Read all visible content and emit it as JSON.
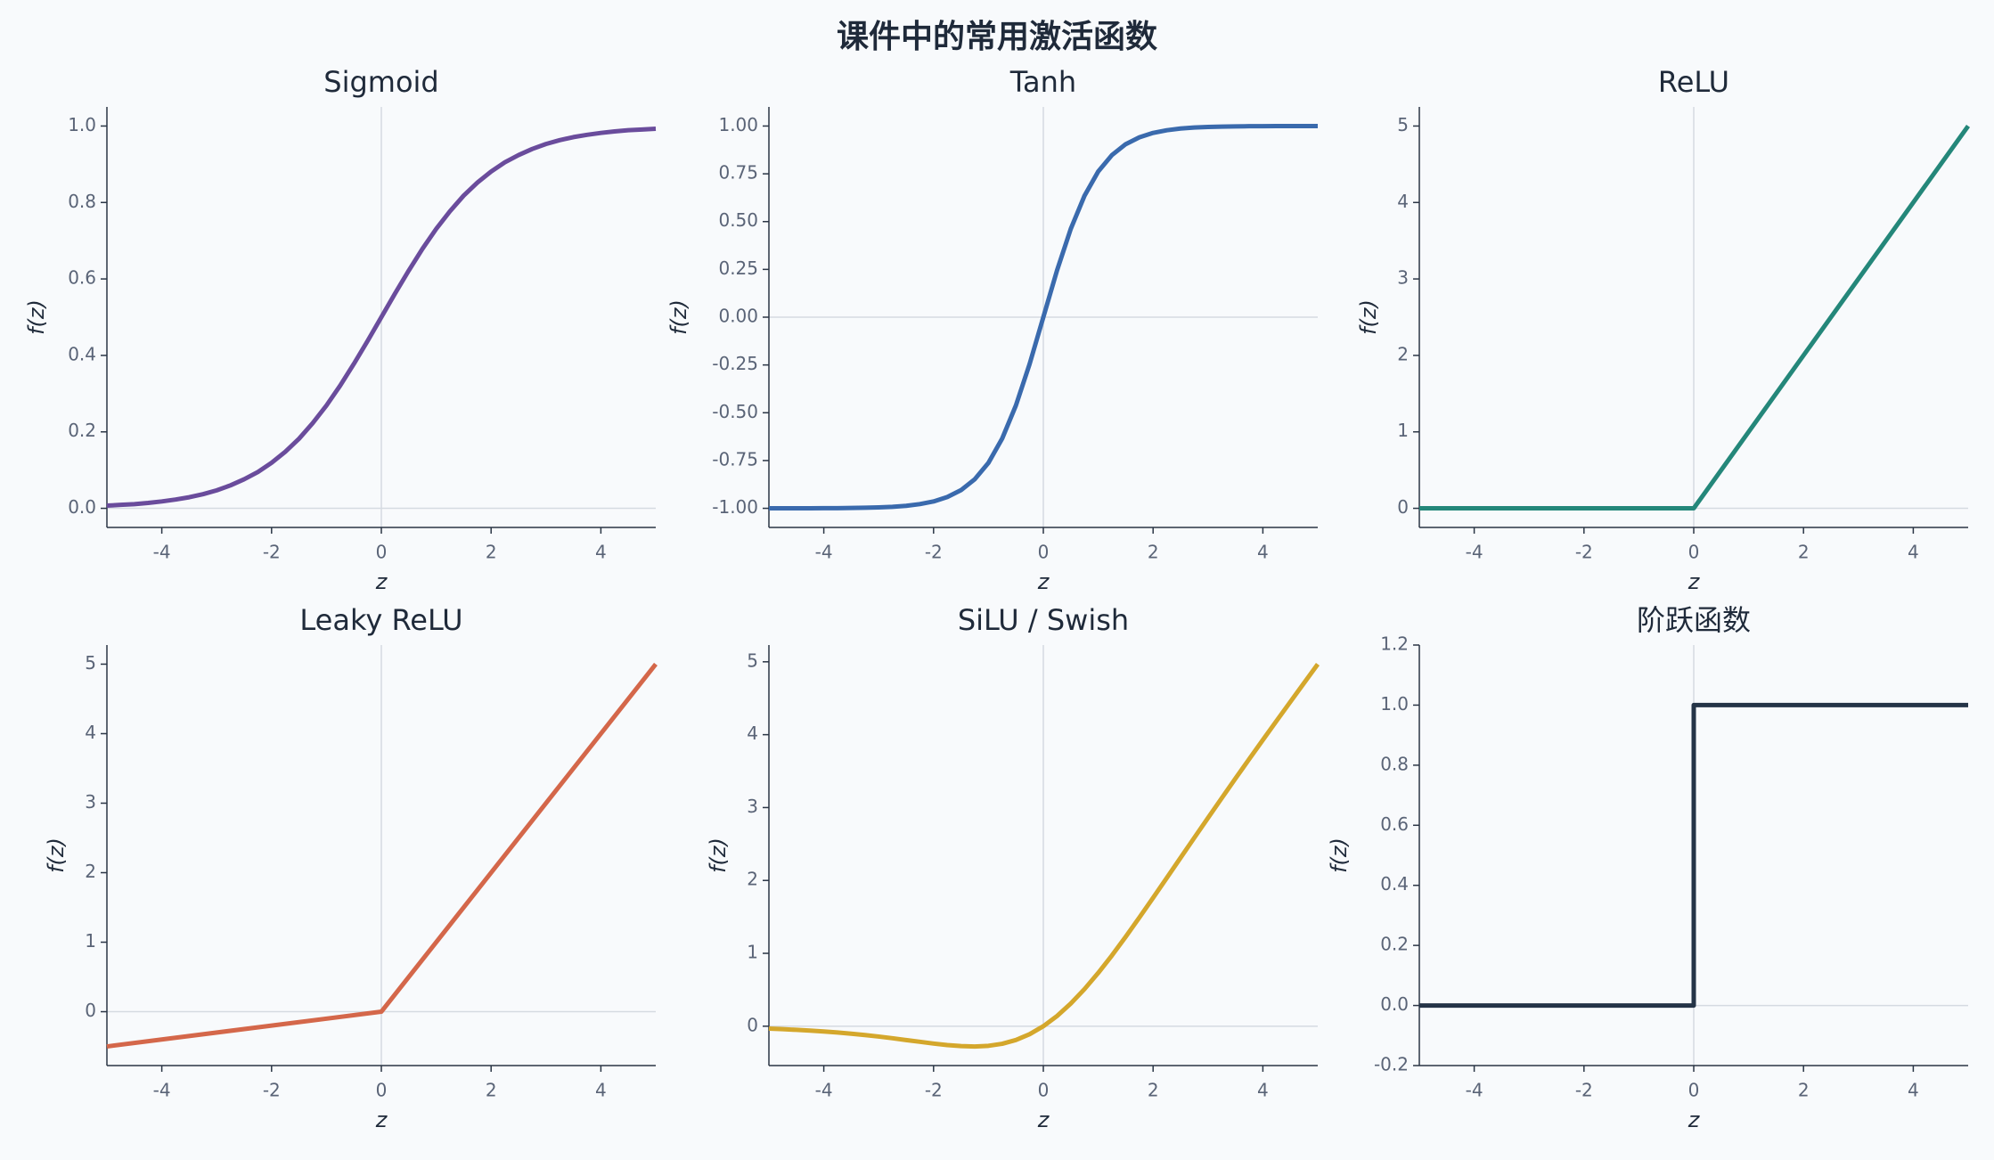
{
  "title": "课件中的常用激活函数",
  "chart_data": [
    {
      "type": "line",
      "title": "Sigmoid",
      "xlabel": "z",
      "ylabel": "f(z)",
      "x": [
        -5,
        -4.75,
        -4.5,
        -4.25,
        -4,
        -3.75,
        -3.5,
        -3.25,
        -3,
        -2.75,
        -2.5,
        -2.25,
        -2,
        -1.75,
        -1.5,
        -1.25,
        -1,
        -0.75,
        -0.5,
        -0.25,
        0,
        0.25,
        0.5,
        0.75,
        1,
        1.25,
        1.5,
        1.75,
        2,
        2.25,
        2.5,
        2.75,
        3,
        3.25,
        3.5,
        3.75,
        4,
        4.25,
        4.5,
        4.75,
        5
      ],
      "series": [
        {
          "color": "#6a4c9c",
          "values": [
            0.007,
            0.009,
            0.011,
            0.014,
            0.018,
            0.023,
            0.029,
            0.037,
            0.047,
            0.06,
            0.076,
            0.095,
            0.119,
            0.148,
            0.182,
            0.223,
            0.269,
            0.321,
            0.378,
            0.438,
            0.5,
            0.562,
            0.622,
            0.679,
            0.731,
            0.777,
            0.818,
            0.852,
            0.881,
            0.905,
            0.924,
            0.94,
            0.953,
            0.963,
            0.971,
            0.977,
            0.982,
            0.986,
            0.989,
            0.991,
            0.993
          ]
        }
      ],
      "xlim": [
        -5,
        5
      ],
      "xticks": [
        -4,
        -2,
        0,
        2,
        4
      ],
      "ylim": [
        -0.05,
        1.05
      ],
      "yticks": [
        {
          "value": 0,
          "label": "0.0"
        },
        0.2,
        0.4,
        0.6,
        0.8,
        {
          "value": 1,
          "label": "1.0"
        }
      ],
      "zero_lines": true
    },
    {
      "type": "line",
      "title": "Tanh",
      "xlabel": "z",
      "ylabel": "f(z)",
      "x": [
        -5,
        -4.75,
        -4.5,
        -4.25,
        -4,
        -3.75,
        -3.5,
        -3.25,
        -3,
        -2.75,
        -2.5,
        -2.25,
        -2,
        -1.75,
        -1.5,
        -1.25,
        -1,
        -0.75,
        -0.5,
        -0.25,
        0,
        0.25,
        0.5,
        0.75,
        1,
        1.25,
        1.5,
        1.75,
        2,
        2.25,
        2.5,
        2.75,
        3,
        3.25,
        3.5,
        3.75,
        4,
        4.25,
        4.5,
        4.75,
        5
      ],
      "series": [
        {
          "color": "#3a6aad",
          "values": [
            -1,
            -1,
            -1,
            -1,
            -0.999,
            -0.999,
            -0.998,
            -0.997,
            -0.995,
            -0.992,
            -0.987,
            -0.978,
            -0.964,
            -0.941,
            -0.905,
            -0.848,
            -0.762,
            -0.635,
            -0.462,
            -0.245,
            0,
            0.245,
            0.462,
            0.635,
            0.762,
            0.848,
            0.905,
            0.941,
            0.964,
            0.978,
            0.987,
            0.992,
            0.995,
            0.997,
            0.998,
            0.999,
            0.999,
            1,
            1,
            1,
            1
          ]
        }
      ],
      "xlim": [
        -5,
        5
      ],
      "xticks": [
        -4,
        -2,
        0,
        2,
        4
      ],
      "ylim": [
        -1.1,
        1.1
      ],
      "yticks": [
        {
          "value": -1,
          "label": "-1.00"
        },
        -0.75,
        {
          "value": -0.5,
          "label": "-0.50"
        },
        -0.25,
        {
          "value": 0,
          "label": "0.00"
        },
        0.25,
        {
          "value": 0.5,
          "label": "0.50"
        },
        0.75,
        {
          "value": 1,
          "label": "1.00"
        }
      ],
      "zero_lines": true
    },
    {
      "type": "line",
      "title": "ReLU",
      "xlabel": "z",
      "ylabel": "f(z)",
      "x": [
        -5,
        0,
        5
      ],
      "series": [
        {
          "color": "#24877a",
          "values": [
            0,
            0,
            5
          ]
        }
      ],
      "xlim": [
        -5,
        5
      ],
      "xticks": [
        -4,
        -2,
        0,
        2,
        4
      ],
      "ylim": [
        -0.25,
        5.25
      ],
      "yticks": [
        0,
        1,
        2,
        3,
        4,
        5
      ],
      "zero_lines": true
    },
    {
      "type": "line",
      "title": "Leaky ReLU",
      "xlabel": "z",
      "ylabel": "f(z)",
      "x": [
        -5,
        0,
        5
      ],
      "series": [
        {
          "color": "#d4674a",
          "values": [
            -0.5,
            0,
            5
          ]
        }
      ],
      "xlim": [
        -5,
        5
      ],
      "xticks": [
        -4,
        -2,
        0,
        2,
        4
      ],
      "ylim": [
        -0.775,
        5.275
      ],
      "yticks": [
        0,
        1,
        2,
        3,
        4,
        5
      ],
      "zero_lines": true
    },
    {
      "type": "line",
      "title": "SiLU / Swish",
      "xlabel": "z",
      "ylabel": "f(z)",
      "x": [
        -5,
        -4.75,
        -4.5,
        -4.25,
        -4,
        -3.75,
        -3.5,
        -3.25,
        -3,
        -2.75,
        -2.5,
        -2.25,
        -2,
        -1.75,
        -1.5,
        -1.25,
        -1,
        -0.75,
        -0.5,
        -0.25,
        0,
        0.25,
        0.5,
        0.75,
        1,
        1.25,
        1.5,
        1.75,
        2,
        2.25,
        2.5,
        2.75,
        3,
        3.25,
        3.5,
        3.75,
        4,
        4.25,
        4.5,
        4.75,
        5
      ],
      "series": [
        {
          "color": "#d4a72c",
          "values": [
            -0.033,
            -0.041,
            -0.05,
            -0.06,
            -0.072,
            -0.086,
            -0.103,
            -0.121,
            -0.142,
            -0.165,
            -0.19,
            -0.214,
            -0.238,
            -0.259,
            -0.273,
            -0.279,
            -0.269,
            -0.241,
            -0.189,
            -0.11,
            0,
            0.14,
            0.311,
            0.509,
            0.731,
            0.971,
            1.227,
            1.491,
            1.762,
            2.036,
            2.311,
            2.585,
            2.858,
            3.129,
            3.398,
            3.664,
            3.928,
            4.19,
            4.45,
            4.709,
            4.967
          ]
        }
      ],
      "xlim": [
        -5,
        5
      ],
      "xticks": [
        -4,
        -2,
        0,
        2,
        4
      ],
      "ylim": [
        -0.54,
        5.23
      ],
      "yticks": [
        0,
        1,
        2,
        3,
        4,
        5
      ],
      "zero_lines": true
    },
    {
      "type": "line",
      "title": "阶跃函数",
      "xlabel": "z",
      "ylabel": "f(z)",
      "x": [
        -5,
        0,
        0,
        5
      ],
      "series": [
        {
          "color": "#253447",
          "values": [
            0,
            0,
            1,
            1
          ]
        }
      ],
      "xlim": [
        -5,
        5
      ],
      "xticks": [
        -4,
        -2,
        0,
        2,
        4
      ],
      "ylim": [
        -0.2,
        1.2
      ],
      "yticks": [
        -0.2,
        {
          "value": 0,
          "label": "0.0"
        },
        0.2,
        0.4,
        0.6,
        0.8,
        {
          "value": 1,
          "label": "1.0"
        },
        1.2
      ],
      "zero_lines": true
    }
  ]
}
